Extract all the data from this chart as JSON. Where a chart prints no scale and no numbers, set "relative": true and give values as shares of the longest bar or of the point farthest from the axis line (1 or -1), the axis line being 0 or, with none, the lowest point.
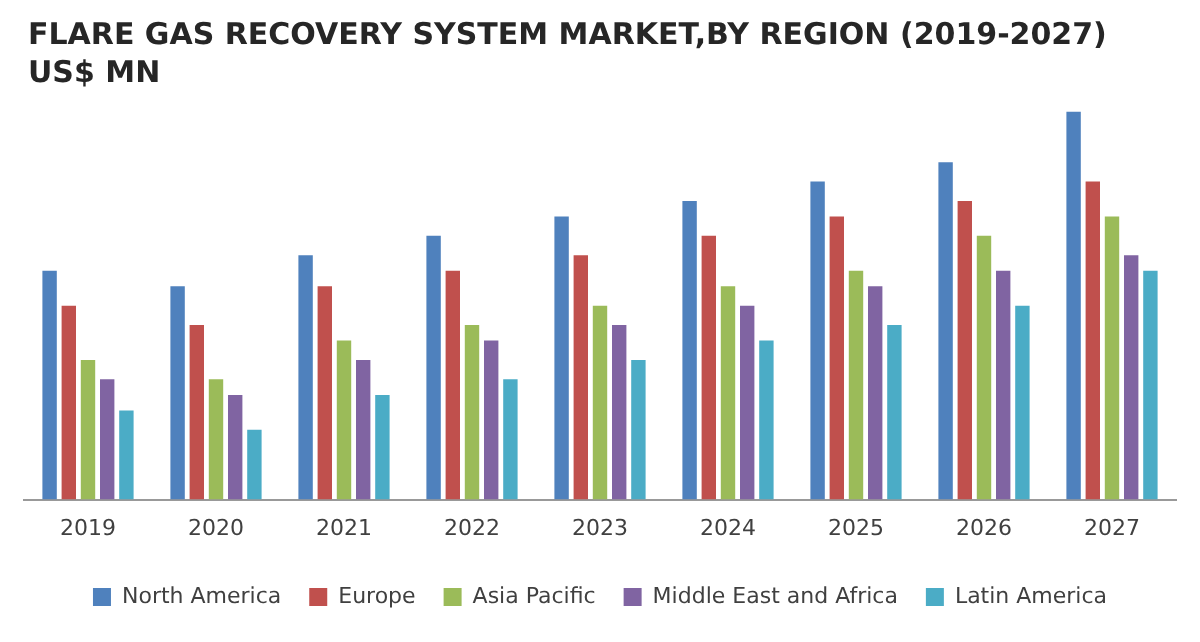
{
  "chart_data": {
    "type": "bar",
    "title": "FLARE GAS RECOVERY SYSTEM MARKET,BY REGION (2019-2027)",
    "subtitle": "US$ MN",
    "relative": true,
    "categories": [
      "2019",
      "2020",
      "2021",
      "2022",
      "2023",
      "2024",
      "2025",
      "2026",
      "2027"
    ],
    "series": [
      {
        "name": "North America",
        "color": "#4f81bd",
        "values": [
          0.59,
          0.55,
          0.63,
          0.68,
          0.73,
          0.77,
          0.82,
          0.87,
          1
        ]
      },
      {
        "name": "Europe",
        "color": "#c0504d",
        "values": [
          0.5,
          0.45,
          0.55,
          0.59,
          0.63,
          0.68,
          0.73,
          0.77,
          0.82
        ]
      },
      {
        "name": "Asia Pacific",
        "color": "#9bbb59",
        "values": [
          0.36,
          0.31,
          0.41,
          0.45,
          0.5,
          0.55,
          0.59,
          0.68,
          0.73
        ]
      },
      {
        "name": "Middle East and Africa",
        "color": "#8064a2",
        "values": [
          0.31,
          0.27,
          0.36,
          0.41,
          0.45,
          0.5,
          0.55,
          0.59,
          0.63
        ]
      },
      {
        "name": "Latin America",
        "color": "#4bacc6",
        "values": [
          0.23,
          0.18,
          0.27,
          0.31,
          0.36,
          0.41,
          0.45,
          0.5,
          0.59
        ]
      }
    ],
    "grid": false,
    "legend": "bottom"
  }
}
